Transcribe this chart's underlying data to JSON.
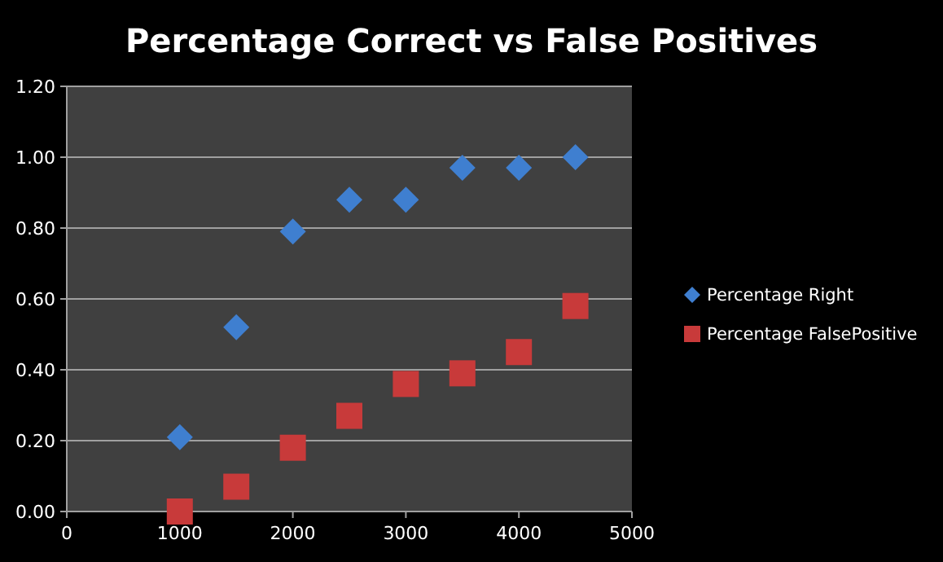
{
  "chart_data": {
    "type": "scatter",
    "title": "Percentage Correct vs False Positives",
    "x": [
      1000,
      1500,
      2000,
      2500,
      3000,
      3500,
      4000,
      4500
    ],
    "series": [
      {
        "name": "Percentage Right",
        "color": "#3f7fd0",
        "marker": "diamond",
        "values": [
          0.21,
          0.52,
          0.79,
          0.88,
          0.88,
          0.97,
          0.97,
          1.0
        ]
      },
      {
        "name": "Percentage FalsePositive",
        "color": "#c83a3a",
        "marker": "square",
        "values": [
          0.0,
          0.07,
          0.18,
          0.27,
          0.36,
          0.39,
          0.45,
          0.58
        ]
      }
    ],
    "xlim": [
      0,
      5000
    ],
    "xticks": [
      0,
      1000,
      2000,
      3000,
      4000,
      5000
    ],
    "ylim": [
      0,
      1.2
    ],
    "yticks": [
      {
        "value": 0,
        "label": "0.00"
      },
      {
        "value": 0.2,
        "label": "0.20"
      },
      {
        "value": 0.4,
        "label": "0.40"
      },
      {
        "value": 0.6,
        "label": "0.60"
      },
      {
        "value": 0.8,
        "label": "0.80"
      },
      {
        "value": 1,
        "label": "1.00"
      },
      {
        "value": 1.2,
        "label": "1.20"
      }
    ],
    "grid": "y",
    "legend": "right"
  }
}
